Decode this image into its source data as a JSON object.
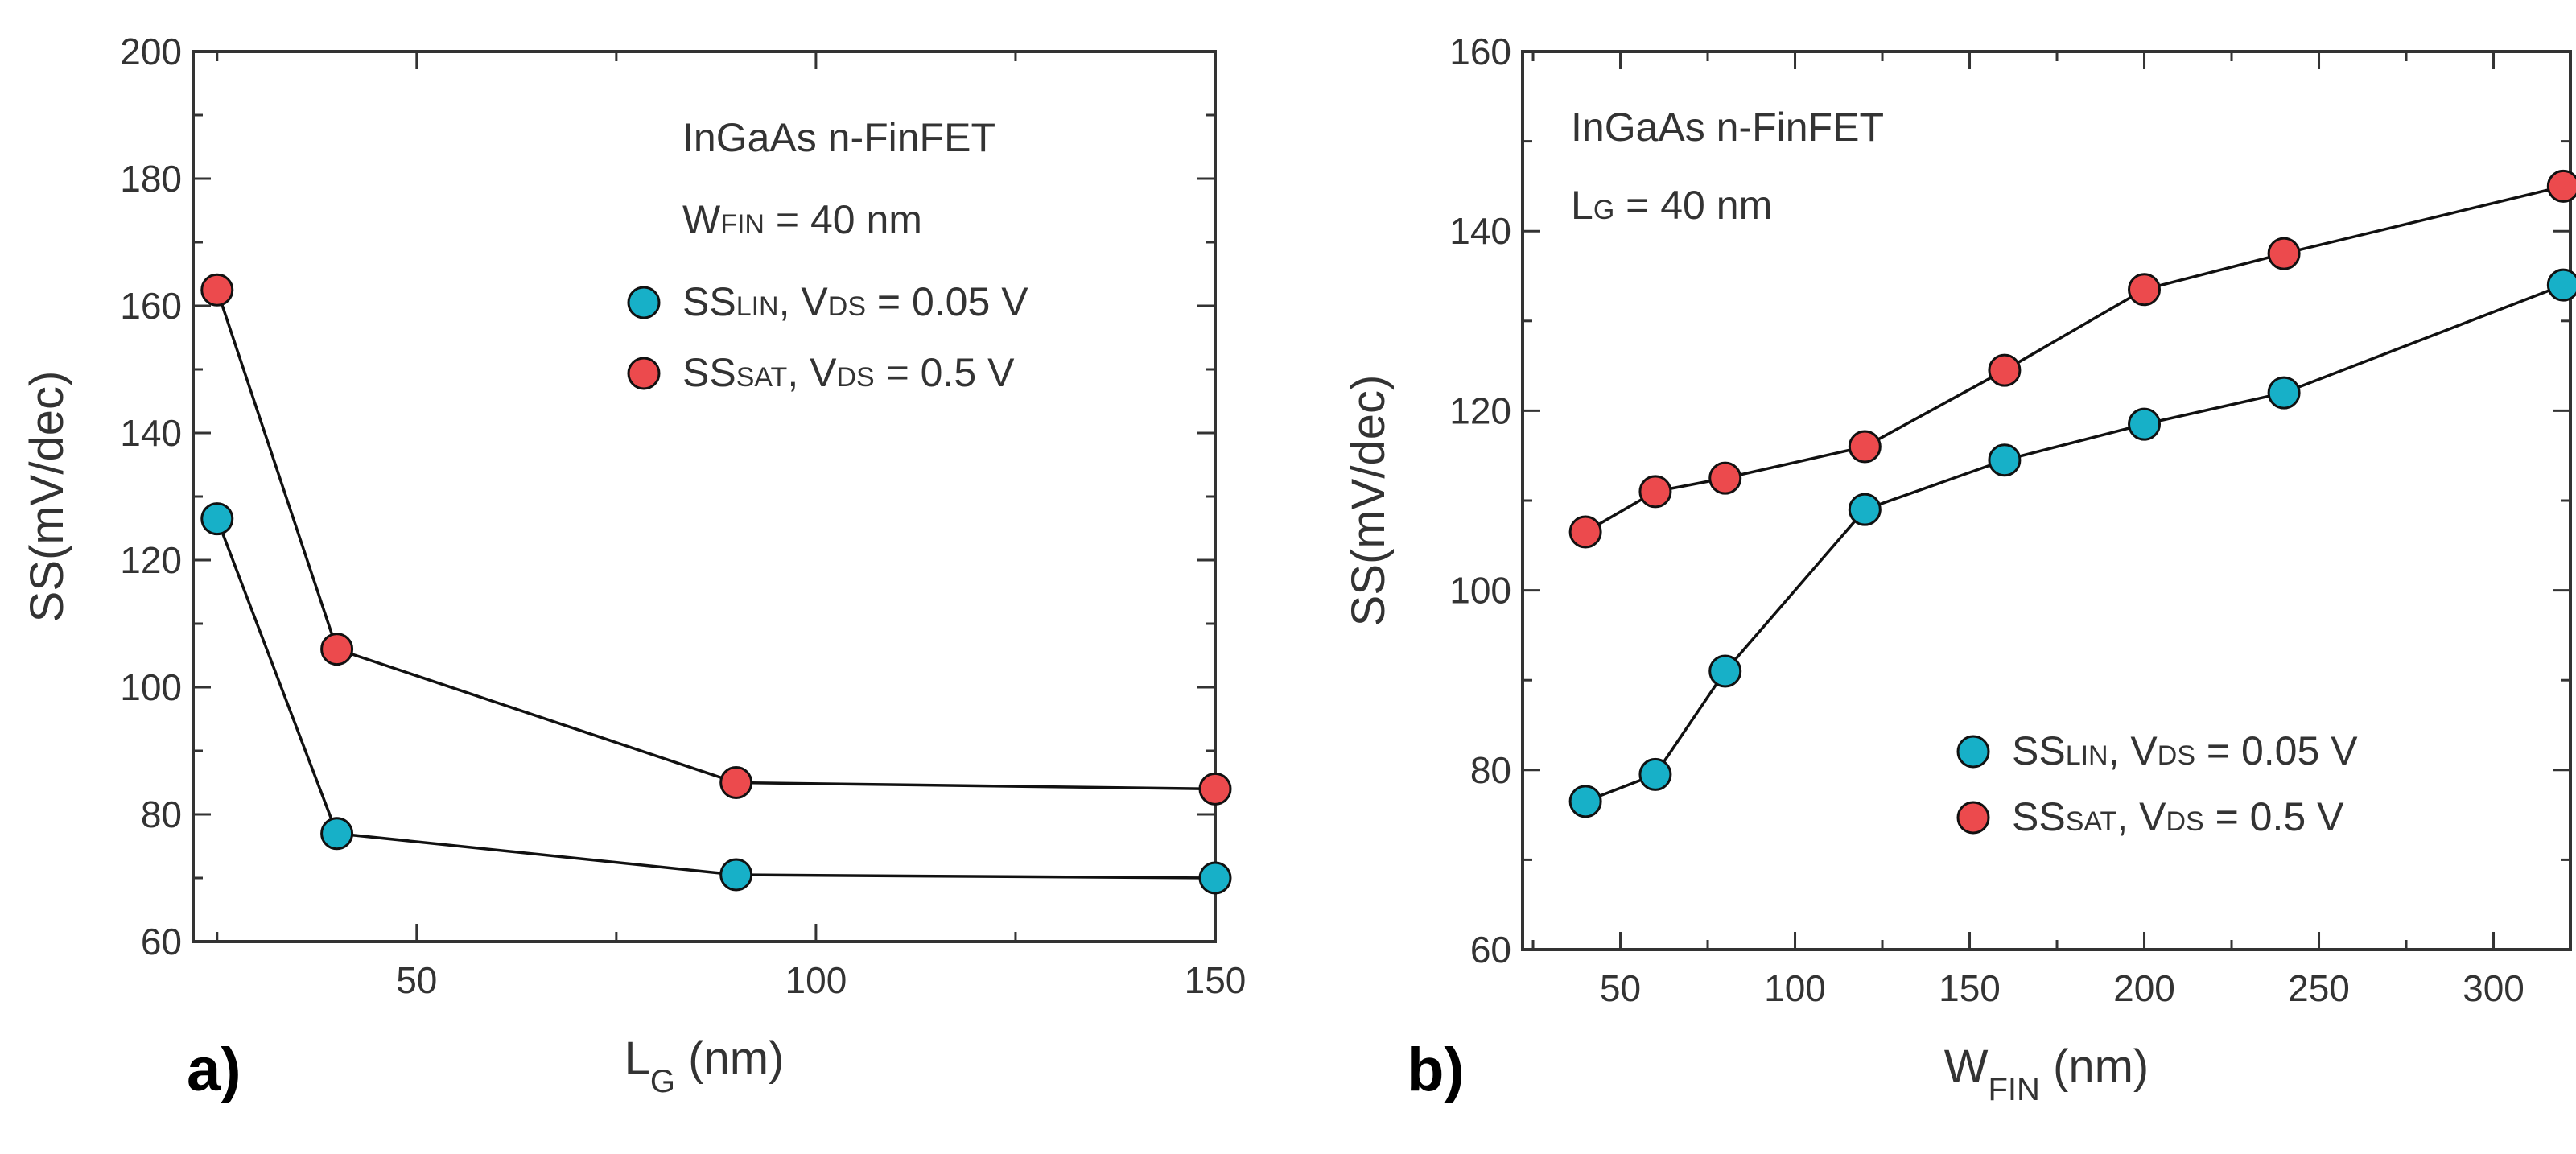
{
  "chart_data": [
    {
      "type": "line",
      "panel": "a)",
      "xlabel": "L",
      "xlabel_sub": "G",
      "xlabel_unit": " (nm)",
      "ylabel": "SS(mV/dec)",
      "xlim": [
        22,
        150
      ],
      "ylim": [
        60,
        200
      ],
      "xticks": [
        50,
        100,
        150
      ],
      "yticks": [
        60,
        80,
        100,
        120,
        140,
        160,
        180,
        200
      ],
      "annotations": [
        {
          "text": "InGaAs n-FinFET",
          "sub": "",
          "rest": ""
        },
        {
          "text": "W",
          "sub": "FIN",
          "rest": " = 40 nm"
        }
      ],
      "legend_position": "top-right",
      "series": [
        {
          "name": "SS",
          "name_sub": "LIN",
          "label_rest": ", V",
          "label_sub2": "DS",
          "label_end": " = 0.05 V",
          "color": "#17b0c8",
          "x": [
            25,
            40,
            90,
            150
          ],
          "values": [
            126.5,
            77,
            70.5,
            70
          ]
        },
        {
          "name": "SS",
          "name_sub": "SAT",
          "label_rest": ", V",
          "label_sub2": "DS",
          "label_end": " = 0.5 V",
          "color": "#ec4a4d",
          "x": [
            25,
            40,
            90,
            150
          ],
          "values": [
            162.5,
            106,
            85,
            84
          ]
        }
      ]
    },
    {
      "type": "line",
      "panel": "b)",
      "xlabel": "W",
      "xlabel_sub": "FIN",
      "xlabel_unit": " (nm)",
      "ylabel": "SS(mV/dec)",
      "xlim": [
        22,
        322
      ],
      "ylim": [
        60,
        160
      ],
      "xticks": [
        50,
        100,
        150,
        200,
        250,
        300
      ],
      "yticks": [
        60,
        80,
        100,
        120,
        140,
        160
      ],
      "annotations": [
        {
          "text": "InGaAs n-FinFET",
          "sub": "",
          "rest": ""
        },
        {
          "text": "L",
          "sub": "G",
          "rest": " = 40 nm"
        }
      ],
      "legend_position": "bottom-right",
      "series": [
        {
          "name": "SS",
          "name_sub": "LIN",
          "label_rest": ", V",
          "label_sub2": "DS",
          "label_end": " = 0.05 V",
          "color": "#17b0c8",
          "x": [
            40,
            60,
            80,
            120,
            160,
            200,
            240,
            320
          ],
          "values": [
            76.5,
            79.5,
            91,
            109,
            114.5,
            118.5,
            122,
            134
          ]
        },
        {
          "name": "SS",
          "name_sub": "SAT",
          "label_rest": ", V",
          "label_sub2": "DS",
          "label_end": " = 0.5 V",
          "color": "#ec4a4d",
          "x": [
            40,
            60,
            80,
            120,
            160,
            200,
            240,
            320
          ],
          "values": [
            106.5,
            111,
            112.5,
            116,
            124.5,
            133.5,
            137.5,
            145
          ]
        }
      ]
    }
  ]
}
